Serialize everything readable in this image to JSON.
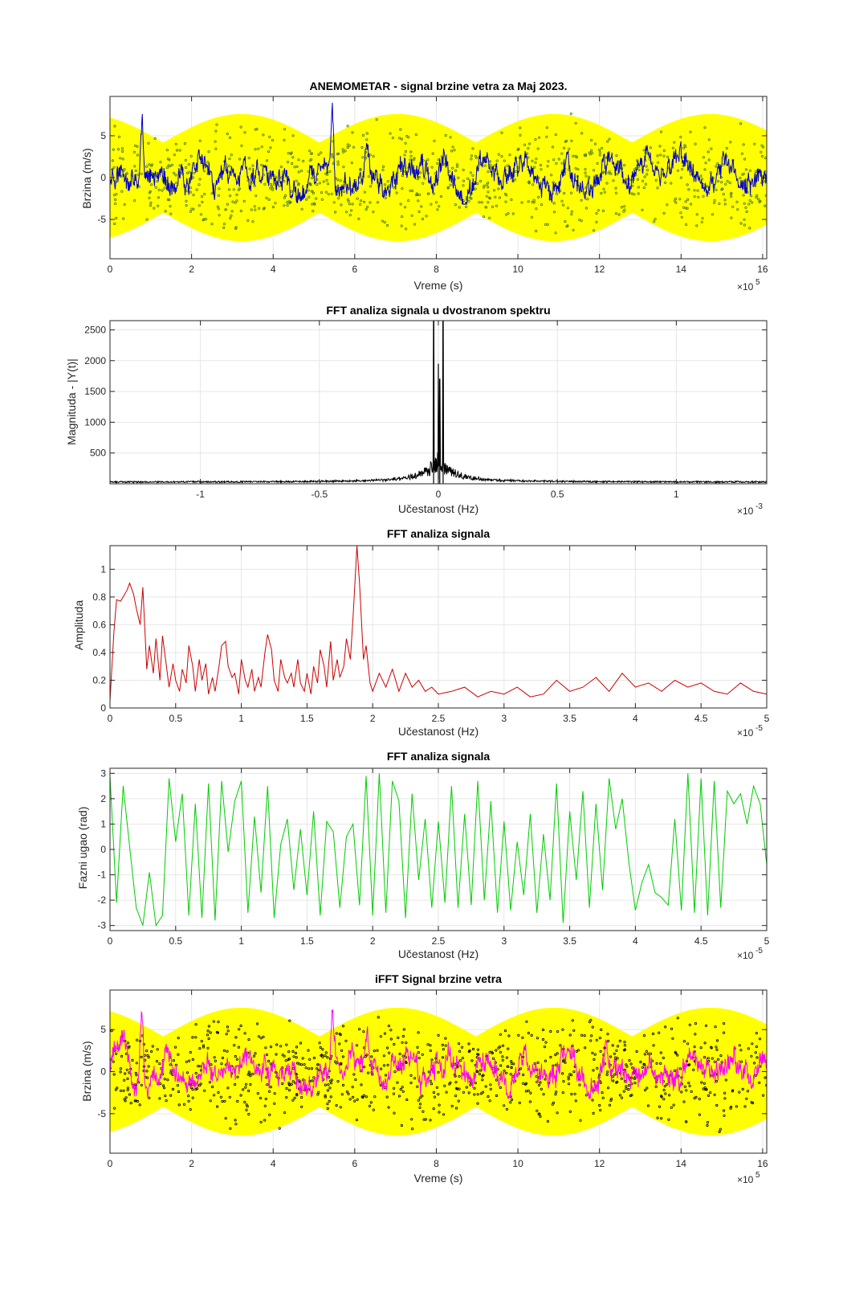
{
  "chart_data": [
    {
      "id": "p1",
      "type": "line",
      "title": "ANEMOMETAR - signal brzine vetra za Maj 2023.",
      "xlabel": "Vreme (s)",
      "ylabel": "Brzina (m/s)",
      "xlim": [
        0,
        16.1
      ],
      "ylim": [
        -9.7,
        9.7
      ],
      "x_ticks": [
        "0",
        "2",
        "4",
        "6",
        "8",
        "10",
        "12",
        "14",
        "16"
      ],
      "y_ticks": [
        "-5",
        "0",
        "5"
      ],
      "x_exponent": "×10",
      "x_exponent_power": "5",
      "grid": true,
      "colors": {
        "signal": "#0000cc",
        "envelope": "#ffff00",
        "points": "#4d7a1a"
      },
      "envelope_amplitude_max": 8,
      "signal_peaks": [
        {
          "x": 0.78,
          "y": 9.5
        },
        {
          "x": 5.45,
          "y": 8.6
        },
        {
          "x": 3.8,
          "y": 4.0
        },
        {
          "x": 6.3,
          "y": 4.2
        }
      ]
    },
    {
      "id": "p2",
      "type": "line",
      "title": "FFT analiza signala u dvostranom spektru",
      "xlabel": "Učestanost (Hz)",
      "ylabel": "Magnituda - |Y(t)|",
      "xlim": [
        -1.38,
        1.38
      ],
      "ylim": [
        0,
        2650
      ],
      "x_ticks": [
        "-1",
        "-0.5",
        "0",
        "0.5",
        "1"
      ],
      "y_ticks": [
        "500",
        "1000",
        "1500",
        "2000",
        "2500"
      ],
      "x_exponent": "×10",
      "x_exponent_power": "-3",
      "grid": true,
      "colors": {
        "line": "#000000"
      },
      "peaks": [
        {
          "x": -0.02,
          "y": 2650
        },
        {
          "x": 0.02,
          "y": 2650
        },
        {
          "x": 0.0,
          "y": 1950
        },
        {
          "x": 0.006,
          "y": 1700
        }
      ]
    },
    {
      "id": "p3",
      "type": "line",
      "title": "FFT analiza signala",
      "xlabel": "Učestanost (Hz)",
      "ylabel": "Amplituda",
      "xlim": [
        0,
        5
      ],
      "ylim": [
        0,
        1.17
      ],
      "x_ticks": [
        "0",
        "0.5",
        "1",
        "1.5",
        "2",
        "2.5",
        "3",
        "3.5",
        "4",
        "4.5",
        "5"
      ],
      "y_ticks": [
        "0",
        "0.2",
        "0.4",
        "0.6",
        "0.8",
        "1"
      ],
      "x_exponent": "×10",
      "x_exponent_power": "-5",
      "grid": true,
      "colors": {
        "line": "#cc0000"
      },
      "x": [
        0,
        0.03,
        0.05,
        0.08,
        0.1,
        0.13,
        0.15,
        0.18,
        0.2,
        0.23,
        0.25,
        0.28,
        0.3,
        0.33,
        0.35,
        0.38,
        0.4,
        0.43,
        0.45,
        0.48,
        0.5,
        0.53,
        0.55,
        0.58,
        0.6,
        0.63,
        0.65,
        0.68,
        0.7,
        0.73,
        0.75,
        0.78,
        0.8,
        0.83,
        0.85,
        0.88,
        0.9,
        0.93,
        0.95,
        0.98,
        1.0,
        1.03,
        1.05,
        1.08,
        1.1,
        1.13,
        1.15,
        1.18,
        1.2,
        1.23,
        1.25,
        1.28,
        1.3,
        1.33,
        1.35,
        1.38,
        1.4,
        1.43,
        1.45,
        1.48,
        1.5,
        1.53,
        1.55,
        1.58,
        1.6,
        1.63,
        1.65,
        1.68,
        1.7,
        1.73,
        1.75,
        1.78,
        1.8,
        1.83,
        1.85,
        1.88,
        1.9,
        1.93,
        1.95,
        1.98,
        2.0,
        2.05,
        2.1,
        2.15,
        2.2,
        2.25,
        2.3,
        2.35,
        2.4,
        2.45,
        2.5,
        2.6,
        2.7,
        2.8,
        2.9,
        3.0,
        3.1,
        3.2,
        3.3,
        3.4,
        3.5,
        3.6,
        3.7,
        3.8,
        3.9,
        4.0,
        4.1,
        4.2,
        4.3,
        4.4,
        4.5,
        4.6,
        4.7,
        4.8,
        4.9,
        5.0
      ],
      "y": [
        0.05,
        0.55,
        0.78,
        0.77,
        0.8,
        0.85,
        0.9,
        0.82,
        0.72,
        0.6,
        0.87,
        0.28,
        0.45,
        0.25,
        0.5,
        0.2,
        0.52,
        0.3,
        0.15,
        0.32,
        0.2,
        0.12,
        0.28,
        0.18,
        0.45,
        0.3,
        0.12,
        0.35,
        0.2,
        0.32,
        0.1,
        0.22,
        0.12,
        0.3,
        0.45,
        0.48,
        0.3,
        0.22,
        0.25,
        0.1,
        0.35,
        0.2,
        0.15,
        0.28,
        0.12,
        0.22,
        0.15,
        0.4,
        0.53,
        0.42,
        0.2,
        0.12,
        0.35,
        0.22,
        0.18,
        0.25,
        0.15,
        0.35,
        0.18,
        0.12,
        0.25,
        0.1,
        0.3,
        0.18,
        0.42,
        0.3,
        0.15,
        0.48,
        0.2,
        0.35,
        0.22,
        0.3,
        0.5,
        0.35,
        0.65,
        1.17,
        0.9,
        0.35,
        0.45,
        0.18,
        0.12,
        0.25,
        0.15,
        0.28,
        0.12,
        0.25,
        0.15,
        0.2,
        0.12,
        0.15,
        0.1,
        0.12,
        0.15,
        0.08,
        0.12,
        0.1,
        0.15,
        0.08,
        0.1,
        0.2,
        0.12,
        0.15,
        0.22,
        0.12,
        0.25,
        0.15,
        0.18,
        0.12,
        0.2,
        0.15,
        0.18,
        0.12,
        0.1,
        0.18,
        0.12,
        0.1
      ]
    },
    {
      "id": "p4",
      "type": "line",
      "title": "FFT analiza signala",
      "xlabel": "Učestanost (Hz)",
      "ylabel": "Fazni ugao (rad)",
      "xlim": [
        0,
        5
      ],
      "ylim": [
        -3.2,
        3.2
      ],
      "x_ticks": [
        "0",
        "0.5",
        "1",
        "1.5",
        "2",
        "2.5",
        "3",
        "3.5",
        "4",
        "4.5",
        "5"
      ],
      "y_ticks": [
        "-3",
        "-2",
        "-1",
        "0",
        "1",
        "2",
        "3"
      ],
      "x_exponent": "×10",
      "x_exponent_power": "-5",
      "grid": true,
      "colors": {
        "line": "#00cc00"
      },
      "x": [
        0,
        0.05,
        0.1,
        0.15,
        0.2,
        0.25,
        0.3,
        0.35,
        0.4,
        0.45,
        0.5,
        0.55,
        0.6,
        0.65,
        0.7,
        0.75,
        0.8,
        0.85,
        0.9,
        0.95,
        1.0,
        1.05,
        1.1,
        1.15,
        1.2,
        1.25,
        1.3,
        1.35,
        1.4,
        1.45,
        1.5,
        1.55,
        1.6,
        1.65,
        1.7,
        1.75,
        1.8,
        1.85,
        1.9,
        1.95,
        2.0,
        2.05,
        2.1,
        2.15,
        2.2,
        2.25,
        2.3,
        2.35,
        2.4,
        2.45,
        2.5,
        2.55,
        2.6,
        2.65,
        2.7,
        2.75,
        2.8,
        2.85,
        2.9,
        2.95,
        3.0,
        3.05,
        3.1,
        3.15,
        3.2,
        3.25,
        3.3,
        3.35,
        3.4,
        3.45,
        3.5,
        3.55,
        3.6,
        3.65,
        3.7,
        3.75,
        3.8,
        3.85,
        3.9,
        3.95,
        4.0,
        4.05,
        4.1,
        4.15,
        4.2,
        4.25,
        4.3,
        4.35,
        4.4,
        4.45,
        4.5,
        4.55,
        4.6,
        4.65,
        4.7,
        4.75,
        4.8,
        4.85,
        4.9,
        4.95,
        5.0
      ],
      "y": [
        2.9,
        -2.1,
        2.5,
        0.1,
        -2.3,
        -3.0,
        -0.9,
        -3.0,
        -2.6,
        2.8,
        0.3,
        2.2,
        -2.6,
        1.8,
        -2.7,
        2.6,
        -2.8,
        2.7,
        -0.1,
        1.9,
        2.7,
        -2.5,
        1.3,
        -1.7,
        2.5,
        -2.7,
        0.2,
        1.2,
        -1.6,
        0.8,
        -1.8,
        1.5,
        -2.6,
        1.1,
        0.7,
        -2.3,
        0.5,
        1.0,
        -2.2,
        2.9,
        -2.6,
        3.0,
        -2.5,
        2.7,
        1.9,
        -2.7,
        2.2,
        -1.2,
        1.2,
        -2.3,
        1.1,
        -2.1,
        2.5,
        -2.3,
        1.4,
        -2.2,
        2.7,
        -2.0,
        1.9,
        -2.5,
        1.1,
        -2.4,
        0.3,
        -1.8,
        1.4,
        -2.5,
        0.6,
        -2.0,
        2.6,
        -2.9,
        1.5,
        -1.2,
        2.3,
        -2.3,
        1.8,
        -1.6,
        2.8,
        0.8,
        2.0,
        -0.5,
        -2.4,
        -1.3,
        -0.6,
        -1.7,
        -1.9,
        -2.2,
        1.2,
        -2.4,
        3.0,
        -2.5,
        2.8,
        -2.6,
        2.7,
        -2.3,
        2.3,
        1.8,
        2.2,
        1.0,
        2.5,
        1.8,
        -0.6
      ]
    },
    {
      "id": "p5",
      "type": "line",
      "title": "iFFT Signal brzine vetra",
      "xlabel": "Vreme (s)",
      "ylabel": "Brzina (m/s)",
      "xlim": [
        0,
        16.1
      ],
      "ylim": [
        -9.7,
        9.7
      ],
      "x_ticks": [
        "0",
        "2",
        "4",
        "6",
        "8",
        "10",
        "12",
        "14",
        "16"
      ],
      "y_ticks": [
        "-5",
        "0",
        "5"
      ],
      "x_exponent": "×10",
      "x_exponent_power": "5",
      "grid": true,
      "colors": {
        "signal": "#ff00ff",
        "envelope": "#ffff00",
        "points": "#000000"
      },
      "envelope_amplitude_max": 8,
      "signal_peaks": [
        {
          "x": 0.78,
          "y": 9.5
        },
        {
          "x": 5.45,
          "y": 8.6
        },
        {
          "x": 3.8,
          "y": 4.0
        },
        {
          "x": 6.3,
          "y": 4.2
        }
      ]
    }
  ]
}
